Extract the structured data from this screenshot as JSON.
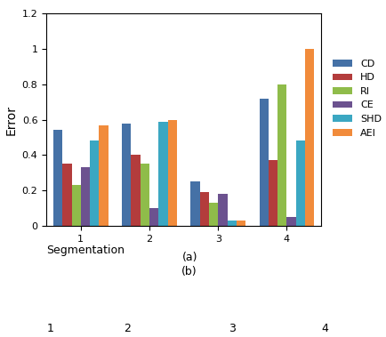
{
  "chart_data": {
    "type": "bar",
    "x_label": "Segmentation",
    "y_label": "Error",
    "categories": [
      "1",
      "2",
      "3",
      "4"
    ],
    "series": [
      {
        "name": "CD",
        "color": "#4571a6",
        "values": [
          0.54,
          0.58,
          0.25,
          0.72
        ]
      },
      {
        "name": "HD",
        "color": "#b33c3c",
        "values": [
          0.35,
          0.4,
          0.19,
          0.37
        ]
      },
      {
        "name": "RI",
        "color": "#8fbc4a",
        "values": [
          0.23,
          0.35,
          0.13,
          0.8
        ]
      },
      {
        "name": "CE",
        "color": "#6c528f",
        "values": [
          0.33,
          0.1,
          0.18,
          0.05
        ]
      },
      {
        "name": "SHD",
        "color": "#3ba7c2",
        "values": [
          0.48,
          0.59,
          0.03,
          0.48
        ]
      },
      {
        "name": "AEI",
        "color": "#f18b3b",
        "values": [
          0.57,
          0.6,
          0.03,
          1.0
        ]
      }
    ],
    "ylim": [
      0,
      1.2
    ],
    "yticks": [
      0,
      0.2,
      0.4,
      0.6,
      0.8,
      1,
      1.2
    ],
    "grid": false,
    "legend": "right",
    "annotations": [
      "(a)",
      "(b)",
      "1",
      "2",
      "3",
      "4"
    ]
  }
}
